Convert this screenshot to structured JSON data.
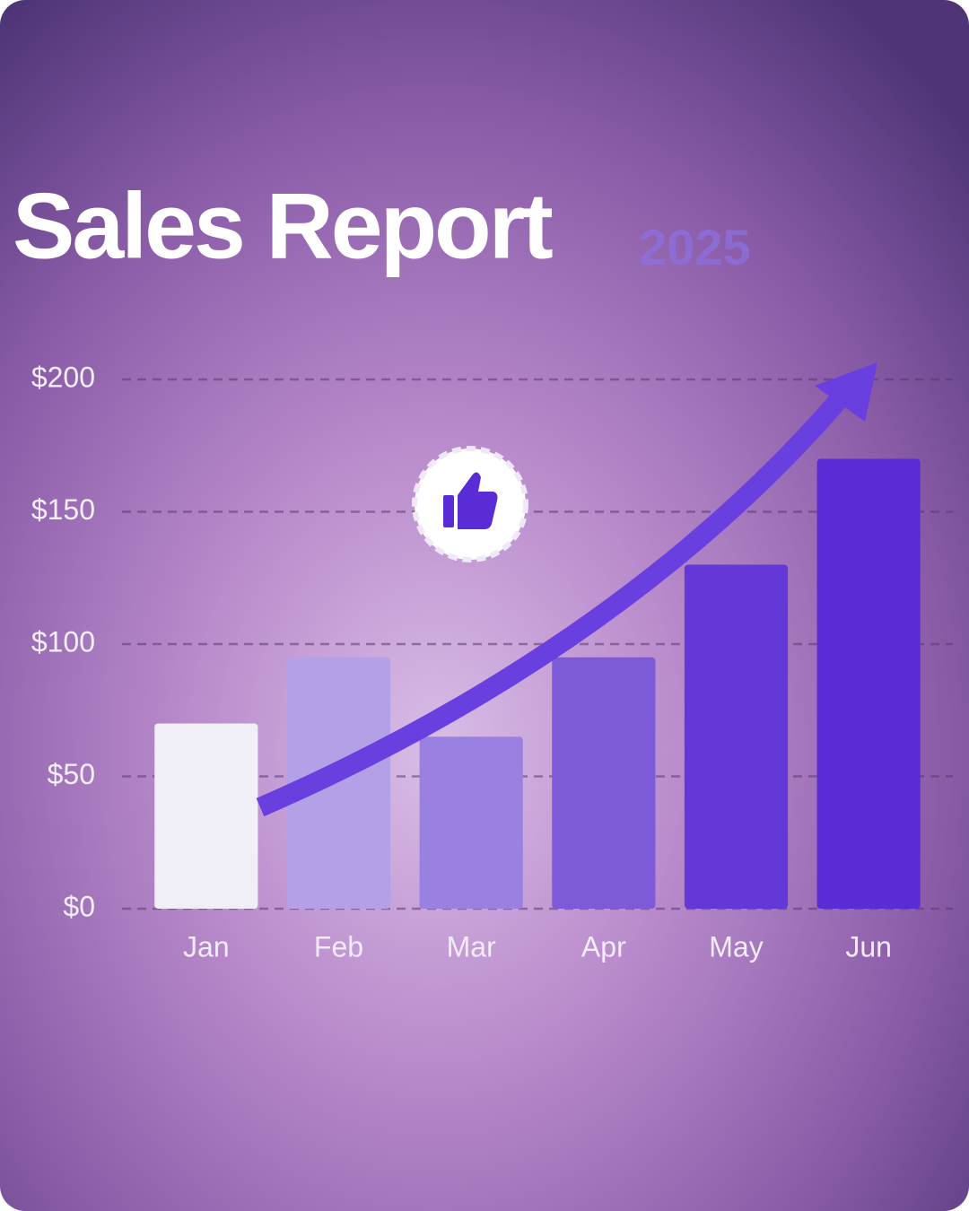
{
  "chart_data": {
    "type": "bar",
    "title": "Sales Report",
    "subtitle": "2025",
    "categories": [
      "Jan",
      "Feb",
      "Mar",
      "Apr",
      "May",
      "Jun"
    ],
    "values": [
      70,
      95,
      65,
      95,
      130,
      170
    ],
    "colors": [
      "#f0eef6",
      "#b3a0e6",
      "#9a80e0",
      "#7c5ad8",
      "#6438d6",
      "#5a2cd6"
    ],
    "ylim": [
      0,
      200
    ],
    "yticks": [
      {
        "value": 0,
        "label": "$0"
      },
      {
        "value": 50,
        "label": "$50"
      },
      {
        "value": 100,
        "label": "$100"
      },
      {
        "value": 150,
        "label": "$150"
      },
      {
        "value": 200,
        "label": "$200"
      }
    ],
    "grid": true
  }
}
